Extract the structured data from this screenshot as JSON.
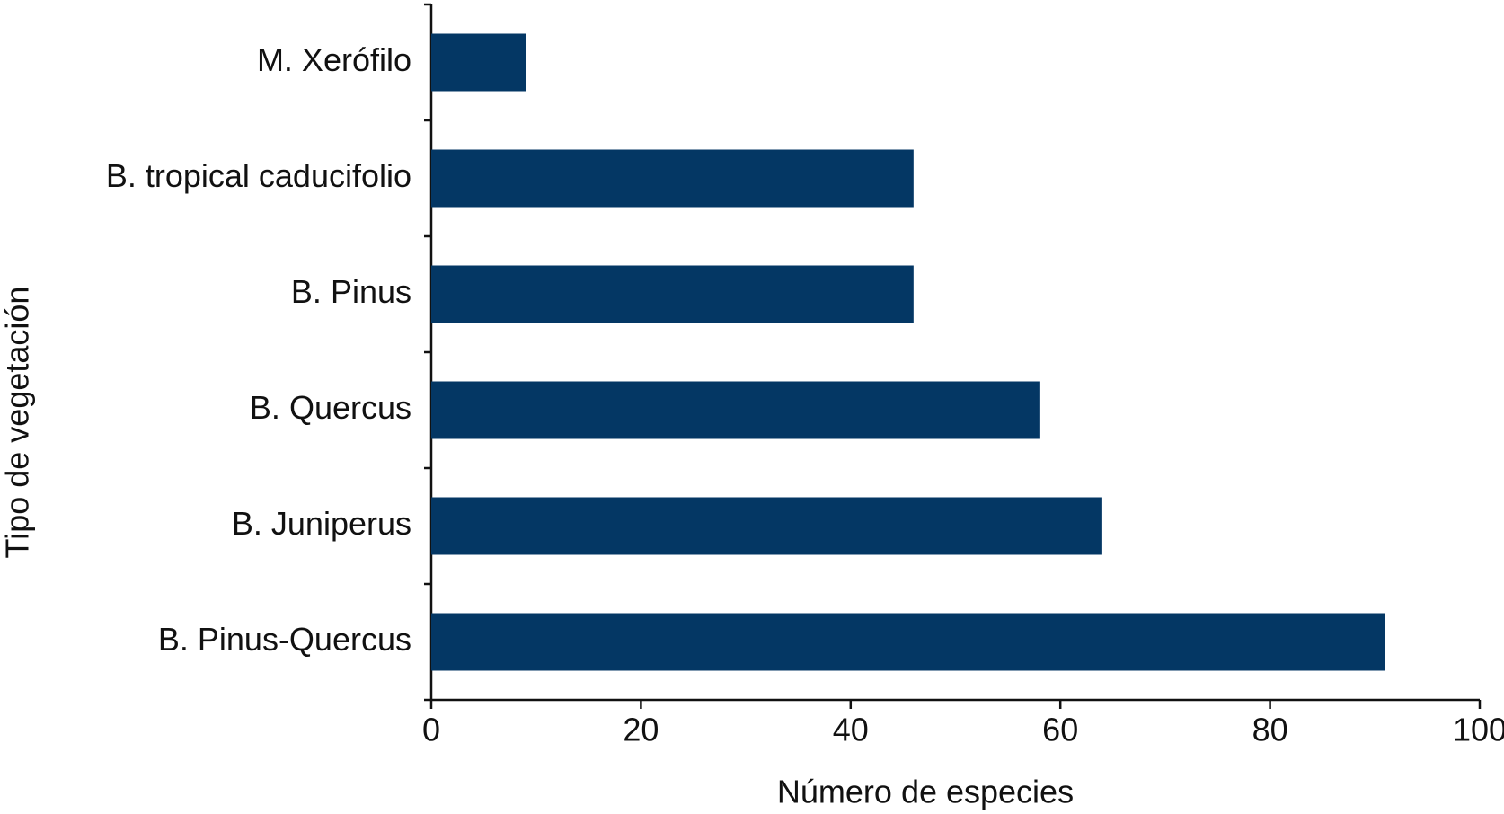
{
  "chart_data": {
    "type": "bar",
    "orientation": "horizontal",
    "xlabel": "Número de especies",
    "ylabel": "Tipo de vegetación",
    "categories": [
      "M. Xerófilo",
      "B. tropical caducifolio",
      "B. Pinus",
      "B. Quercus",
      "B. Juniperus",
      "B. Pinus-Quercus"
    ],
    "values": [
      9,
      46,
      46,
      58,
      64,
      91
    ],
    "color": "#043764",
    "xlim": [
      0,
      100
    ],
    "xticks": [
      0,
      20,
      40,
      60,
      80,
      100
    ]
  }
}
